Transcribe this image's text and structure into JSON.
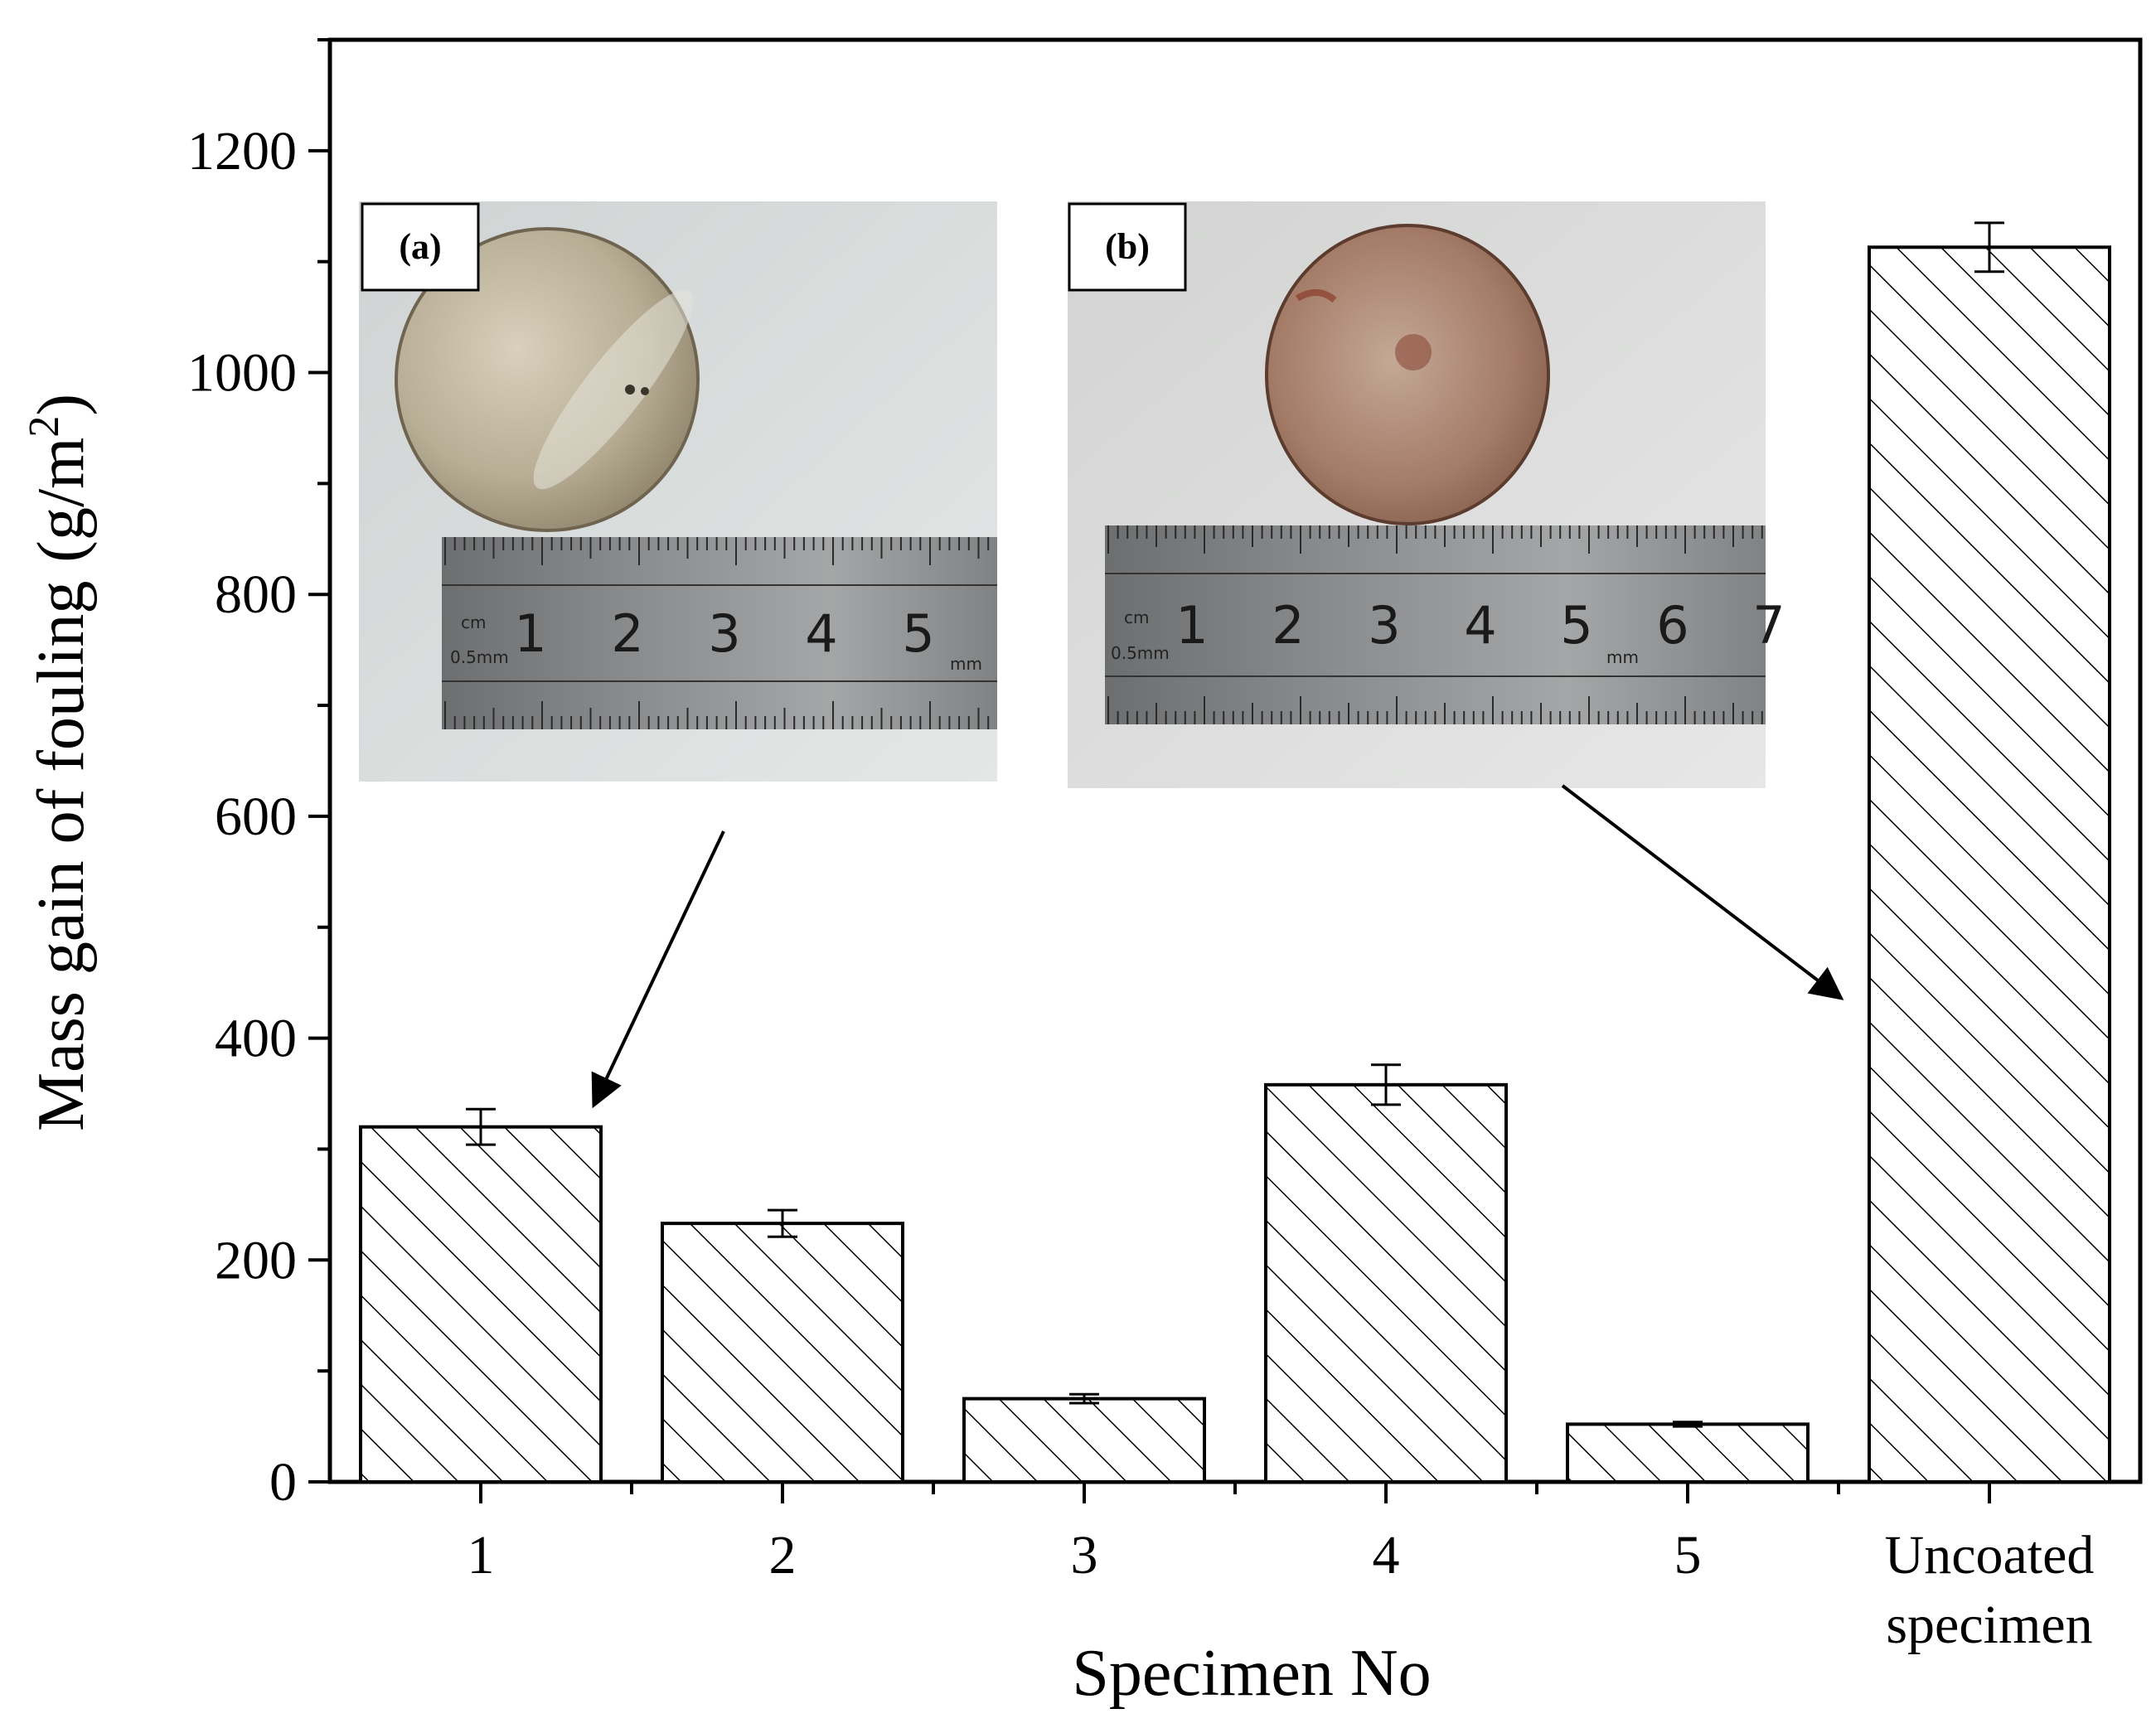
{
  "chart_data": {
    "type": "bar",
    "categories": [
      "1",
      "2",
      "3",
      "4",
      "5",
      "Uncoated specimen"
    ],
    "category_lines": [
      [
        "1"
      ],
      [
        "2"
      ],
      [
        "3"
      ],
      [
        "4"
      ],
      [
        "5"
      ],
      [
        "Uncoated",
        "specimen"
      ]
    ],
    "values": [
      320,
      233,
      75,
      358,
      52,
      1113
    ],
    "errors": [
      16,
      12,
      4,
      18,
      2,
      22
    ],
    "xlabel": "Specimen No",
    "ylabel": "Mass gain of fouling",
    "ylabel_unit": "(g/m",
    "ylabel_unit_sup": "2",
    "ylabel_unit_end": ")",
    "ylim": [
      0,
      1300
    ],
    "yticks": [
      0,
      200,
      400,
      600,
      800,
      1000,
      1200
    ],
    "bar_fill": "hatched",
    "grid": false
  },
  "insets": [
    {
      "label": "(a)",
      "ruler_numbers": [
        "1",
        "2",
        "3",
        "4",
        "5"
      ],
      "ruler_text": [
        "cm",
        "0.5mm",
        "mm"
      ],
      "disc_color": "#b8ae96",
      "points_to": "1"
    },
    {
      "label": "(b)",
      "ruler_numbers": [
        "1",
        "2",
        "3",
        "4",
        "5",
        "6",
        "7"
      ],
      "ruler_text": [
        "cm",
        "0.5mm",
        "mm"
      ],
      "disc_color": "#a47c68",
      "points_to": "Uncoated specimen"
    }
  ]
}
